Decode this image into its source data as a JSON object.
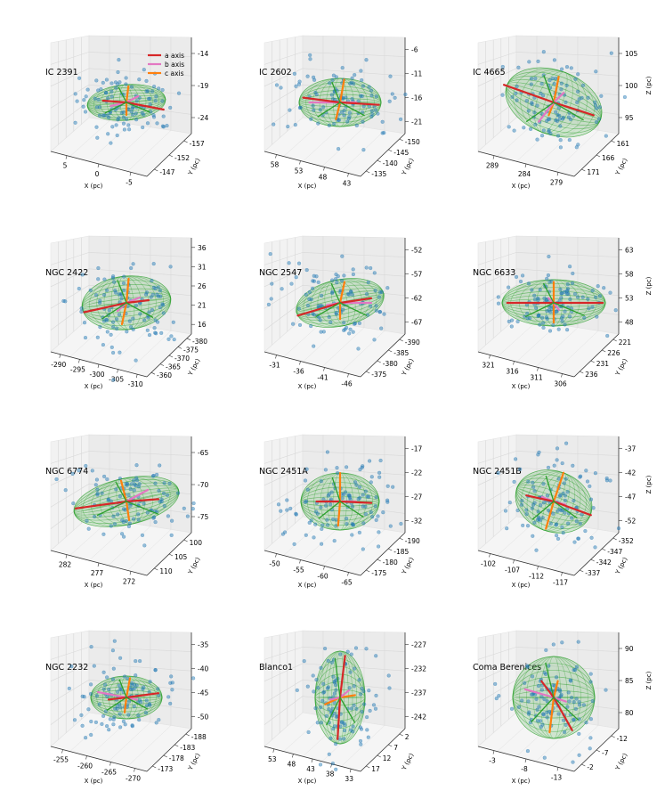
{
  "legend": {
    "items": [
      {
        "label": "a axis",
        "color": "#d62728"
      },
      {
        "label": "b axis",
        "color": "#e377c2"
      },
      {
        "label": "c axis",
        "color": "#ff7f0e"
      }
    ]
  },
  "colors": {
    "points": "#1f77b4",
    "ellipsoid": "#2ca02c",
    "a_axis": "#d62728",
    "b_axis": "#e377c2",
    "c_axis": "#ff7f0e"
  },
  "chart_data": [
    {
      "type": "scatter",
      "title": "IC 2391",
      "xlabel": "X (pc)",
      "ylabel": "Y (pc)",
      "zlabel": "",
      "xticks": [
        "5",
        "0",
        "-5"
      ],
      "yticks": [
        "-157",
        "-152",
        "-147"
      ],
      "zticks": [
        "-14",
        "-19",
        "-24"
      ]
    },
    {
      "type": "scatter",
      "title": "IC 2602",
      "xlabel": "X (pc)",
      "ylabel": "Y (pc)",
      "zlabel": "",
      "xticks": [
        "58",
        "53",
        "48",
        "43"
      ],
      "yticks": [
        "-150",
        "-145",
        "-140",
        "-135"
      ],
      "zticks": [
        "-6",
        "-11",
        "-16",
        "-21"
      ]
    },
    {
      "type": "scatter",
      "title": "IC 4665",
      "xlabel": "X (pc)",
      "ylabel": "Y (pc)",
      "zlabel": "Z (pc)",
      "xticks": [
        "289",
        "284",
        "279"
      ],
      "yticks": [
        "161",
        "166",
        "171"
      ],
      "zticks": [
        "105",
        "100",
        "95"
      ]
    },
    {
      "type": "scatter",
      "title": "NGC 2422",
      "xlabel": "X (pc)",
      "ylabel": "Y (pc)",
      "zlabel": "",
      "xticks": [
        "-290",
        "-295",
        "-300",
        "-305",
        "-310"
      ],
      "yticks": [
        "-380",
        "-375",
        "-370",
        "-365",
        "-360"
      ],
      "zticks": [
        "36",
        "31",
        "26",
        "21",
        "16"
      ]
    },
    {
      "type": "scatter",
      "title": "NGC 2547",
      "xlabel": "X (pc)",
      "ylabel": "Y (pc)",
      "zlabel": "",
      "xticks": [
        "-31",
        "-36",
        "-41",
        "-46"
      ],
      "yticks": [
        "-390",
        "-385",
        "-380",
        "-375"
      ],
      "zticks": [
        "-52",
        "-57",
        "-62",
        "-67"
      ]
    },
    {
      "type": "scatter",
      "title": "NGC 6633",
      "xlabel": "X (pc)",
      "ylabel": "Y (pc)",
      "zlabel": "Z (pc)",
      "xticks": [
        "321",
        "316",
        "311",
        "306"
      ],
      "yticks": [
        "221",
        "226",
        "231",
        "236"
      ],
      "zticks": [
        "63",
        "58",
        "53",
        "48"
      ]
    },
    {
      "type": "scatter",
      "title": "NGC 6774",
      "xlabel": "X (pc)",
      "ylabel": "Y (pc)",
      "zlabel": "",
      "xticks": [
        "282",
        "277",
        "272"
      ],
      "yticks": [
        "100",
        "105",
        "110"
      ],
      "zticks": [
        "-65",
        "-70",
        "-75"
      ]
    },
    {
      "type": "scatter",
      "title": "NGC 2451A",
      "xlabel": "X (pc)",
      "ylabel": "Y (pc)",
      "zlabel": "",
      "xticks": [
        "-50",
        "-55",
        "-60",
        "-65"
      ],
      "yticks": [
        "-190",
        "-185",
        "-180",
        "-175"
      ],
      "zticks": [
        "-17",
        "-22",
        "-27",
        "-32"
      ]
    },
    {
      "type": "scatter",
      "title": "NGC 2451B",
      "xlabel": "X (pc)",
      "ylabel": "Y (pc)",
      "zlabel": "Z (pc)",
      "xticks": [
        "-102",
        "-107",
        "-112",
        "-117"
      ],
      "yticks": [
        "-352",
        "-347",
        "-342",
        "-337"
      ],
      "zticks": [
        "-37",
        "-42",
        "-47",
        "-52"
      ]
    },
    {
      "type": "scatter",
      "title": "NGC 2232",
      "xlabel": "X (pc)",
      "ylabel": "Y (pc)",
      "zlabel": "",
      "xticks": [
        "-255",
        "-260",
        "-265",
        "-270"
      ],
      "yticks": [
        "-188",
        "-183",
        "-178",
        "-173"
      ],
      "zticks": [
        "-35",
        "-40",
        "-45",
        "-50"
      ]
    },
    {
      "type": "scatter",
      "title": "Blanco1",
      "xlabel": "X (pc)",
      "ylabel": "Y (pc)",
      "zlabel": "",
      "xticks": [
        "53",
        "48",
        "43",
        "38",
        "33"
      ],
      "yticks": [
        "2",
        "7",
        "12",
        "17"
      ],
      "zticks": [
        "-227",
        "-232",
        "-237",
        "-242"
      ]
    },
    {
      "type": "scatter",
      "title": "Coma Berenices",
      "xlabel": "X (pc)",
      "ylabel": "Y (pc)",
      "zlabel": "Z (pc)",
      "xticks": [
        "-3",
        "-8",
        "-13"
      ],
      "yticks": [
        "-12",
        "-7",
        "-2"
      ],
      "zticks": [
        "90",
        "85",
        "80"
      ]
    }
  ]
}
